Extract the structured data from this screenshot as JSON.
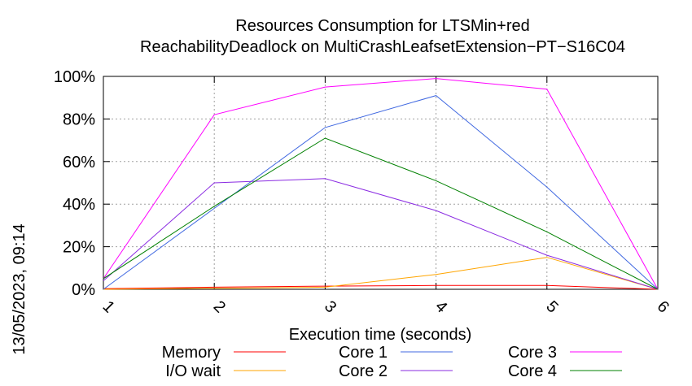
{
  "side_text": "13/05/2023, 09:14",
  "chart_data": {
    "type": "line",
    "title": "Resources Consumption for LTSMin+red",
    "subtitle": "ReachabilityDeadlock on MultiCrashLeafsetExtension−PT−S16C04",
    "xlabel": "Execution time (seconds)",
    "ylabel": "",
    "x": [
      1,
      2,
      3,
      4,
      5,
      6
    ],
    "xlim": [
      1,
      6
    ],
    "ylim": [
      0,
      100
    ],
    "x_ticks": [
      "1",
      "2",
      "3",
      "4",
      "5",
      "6"
    ],
    "y_ticks": [
      {
        "value": 0,
        "label": "0%"
      },
      {
        "value": 20,
        "label": "20%"
      },
      {
        "value": 40,
        "label": "40%"
      },
      {
        "value": 60,
        "label": "60%"
      },
      {
        "value": 80,
        "label": "80%"
      },
      {
        "value": 100,
        "label": "100%"
      }
    ],
    "grid": true,
    "legend_placement": "bottom",
    "series": [
      {
        "name": "Memory",
        "color": "#ff0000",
        "values": [
          0.3,
          1.0,
          1.5,
          1.8,
          1.8,
          0
        ]
      },
      {
        "name": "I/O wait",
        "color": "#ffa500",
        "values": [
          0,
          0.5,
          1.0,
          7,
          15,
          0
        ]
      },
      {
        "name": "Core 1",
        "color": "#4169e1",
        "values": [
          0,
          38,
          76,
          91,
          48,
          0
        ]
      },
      {
        "name": "Core 2",
        "color": "#8a2be2",
        "values": [
          4,
          50,
          52,
          37,
          16,
          0
        ]
      },
      {
        "name": "Core 3",
        "color": "#ff00ff",
        "values": [
          5,
          82,
          95,
          99,
          94,
          0
        ]
      },
      {
        "name": "Core 4",
        "color": "#008000",
        "values": [
          5,
          39,
          71,
          51,
          27,
          0
        ]
      }
    ]
  }
}
